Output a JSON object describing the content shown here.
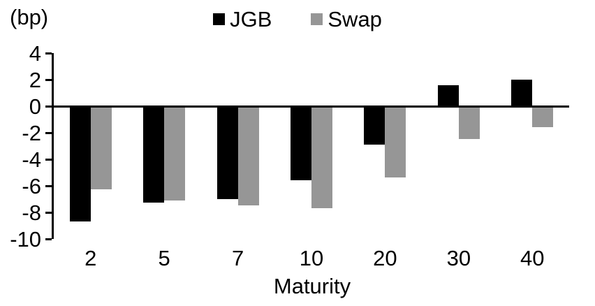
{
  "chart_data": {
    "type": "bar",
    "title": "",
    "ylabel": "(bp)",
    "xlabel": "Maturity",
    "categories": [
      "2",
      "5",
      "7",
      "10",
      "20",
      "30",
      "40"
    ],
    "series": [
      {
        "name": "JGB",
        "color": "#000000",
        "values": [
          -8.6,
          -7.2,
          -6.9,
          -5.5,
          -2.8,
          1.6,
          2.0
        ]
      },
      {
        "name": "Swap",
        "color": "#969696",
        "values": [
          -6.2,
          -7.0,
          -7.4,
          -7.6,
          -5.3,
          -2.4,
          -1.5
        ]
      }
    ],
    "ylim": [
      -10,
      4
    ],
    "ytick_step": 2,
    "yticks": [
      4,
      2,
      0,
      -2,
      -4,
      -6,
      -8,
      -10
    ],
    "grid": "off",
    "legend_position": "top-center",
    "axis_color": "#000000",
    "background": "#ffffff"
  }
}
